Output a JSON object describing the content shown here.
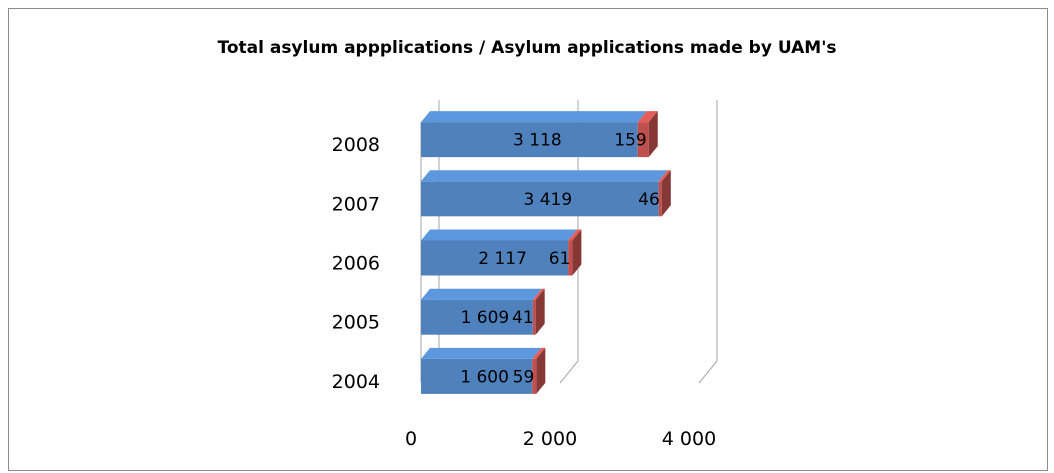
{
  "chart_data": {
    "type": "bar",
    "orientation": "horizontal",
    "stacked": true,
    "style": "3d",
    "title": "Total asylum appplications / Asylum applications made by UAM's",
    "categories": [
      "2004",
      "2005",
      "2006",
      "2007",
      "2008"
    ],
    "series": [
      {
        "values": [
          1600,
          1609,
          2117,
          3419,
          3118
        ],
        "labels": [
          "1 600",
          "1 609",
          "2 117",
          "3 419",
          "3 118"
        ],
        "color": "#4f81bd"
      },
      {
        "values": [
          59,
          41,
          61,
          46,
          159
        ],
        "labels": [
          "59",
          "41",
          "61",
          "46",
          "159"
        ],
        "color": "#c0504d"
      }
    ],
    "x_ticks": [
      {
        "value": 0,
        "label": "0"
      },
      {
        "value": 2000,
        "label": "2 000"
      },
      {
        "value": 4000,
        "label": "4 000"
      }
    ],
    "xlim": [
      0,
      4000
    ],
    "gridlines": true,
    "legend": false
  }
}
